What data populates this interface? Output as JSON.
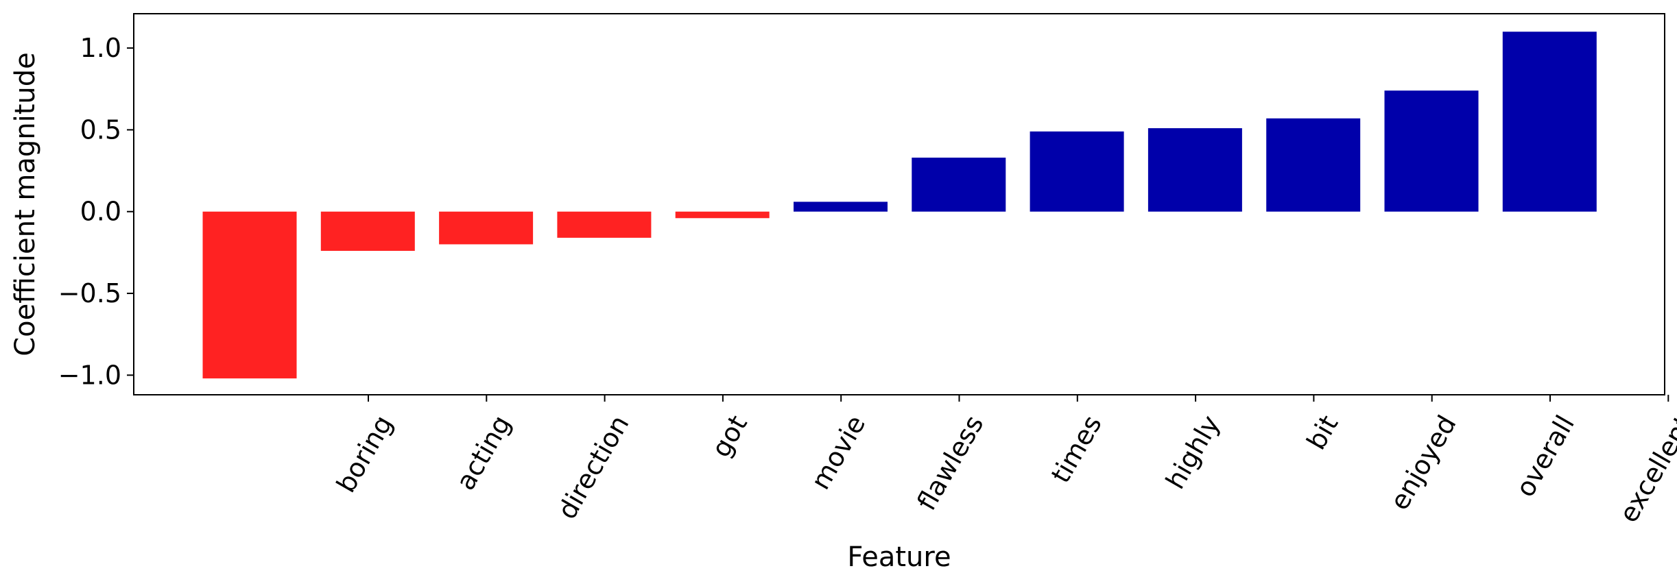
{
  "chart_data": {
    "type": "bar",
    "xlabel": "Feature",
    "ylabel": "Coefficient magnitude",
    "ylim": [
      -1.12,
      1.21
    ],
    "grid": false,
    "legend": "none",
    "bar_values": [
      -1.02,
      -0.24,
      -0.2,
      -0.16,
      -0.04,
      0.06,
      0.33,
      0.49,
      0.51,
      0.57,
      0.74,
      1.1
    ],
    "tick_labels": [
      "boring",
      "acting",
      "direction",
      "got",
      "movie",
      "flawless",
      "times",
      "highly",
      "bit",
      "enjoyed",
      "overall",
      "excellent"
    ],
    "yticks": [
      -1.0,
      -0.5,
      0.0,
      0.5,
      1.0
    ],
    "ytick_labels": [
      "−1.0",
      "−0.5",
      "0.0",
      "0.5",
      "1.0"
    ],
    "colors": {
      "negative": "#ff2222",
      "positive": "#0000aa"
    }
  }
}
